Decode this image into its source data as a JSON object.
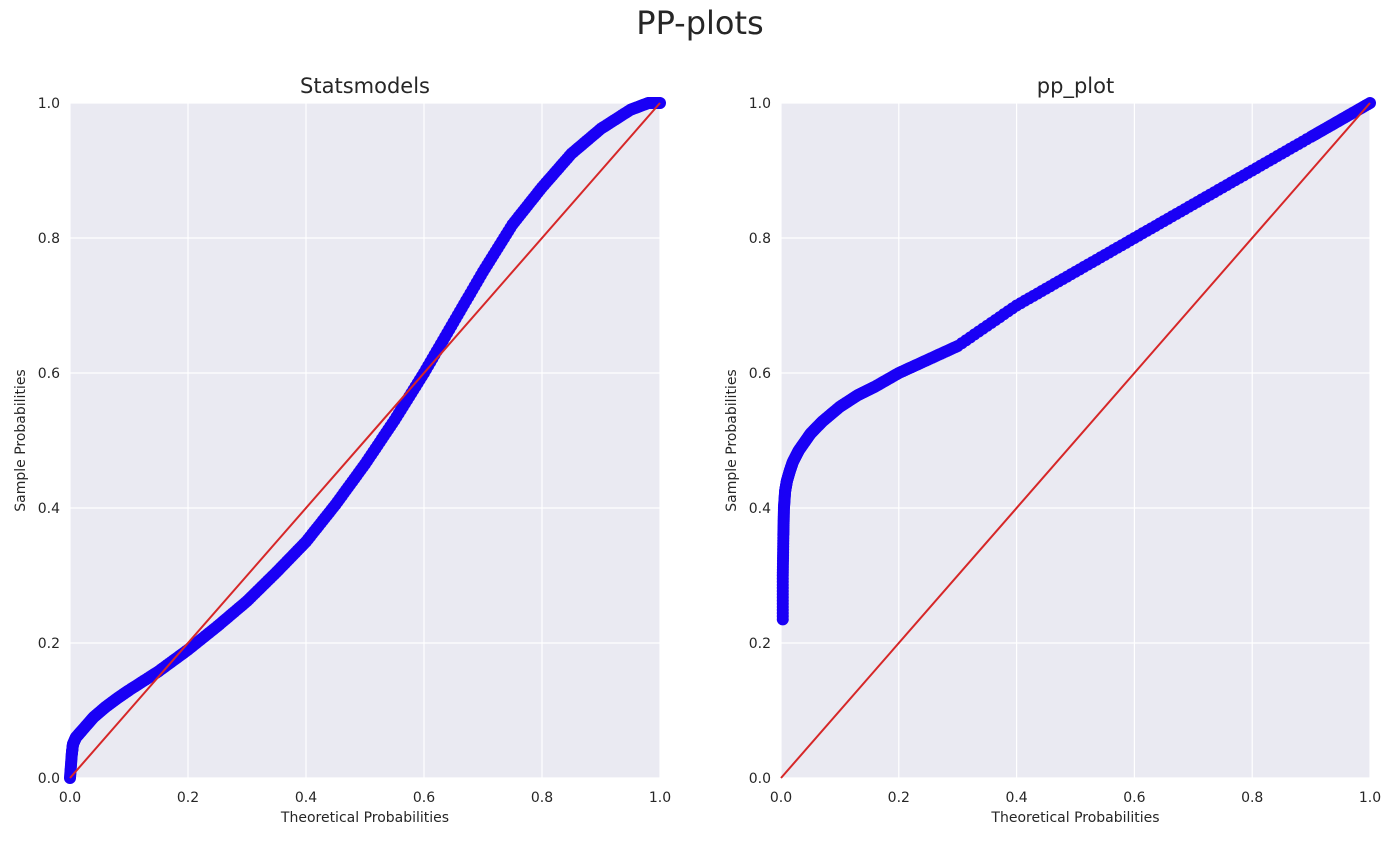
{
  "figure": {
    "suptitle": "PP-plots"
  },
  "chart_data": [
    {
      "type": "scatter",
      "title": "Statsmodels",
      "xlabel": "Theoretical Probabilities",
      "ylabel": "Sample Probabilities",
      "xlim": [
        0,
        1
      ],
      "ylim": [
        0,
        1
      ],
      "xticks": [
        "0.0",
        "0.2",
        "0.4",
        "0.6",
        "0.8",
        "1.0"
      ],
      "yticks": [
        "0.0",
        "0.2",
        "0.4",
        "0.6",
        "0.8",
        "1.0"
      ],
      "grid": true,
      "background": "#eaeaf2",
      "series": [
        {
          "marker_color": "#1a00f5",
          "x": [
            0.0,
            0.003,
            0.005,
            0.01,
            0.02,
            0.04,
            0.06,
            0.08,
            0.1,
            0.15,
            0.2,
            0.25,
            0.3,
            0.35,
            0.4,
            0.45,
            0.5,
            0.55,
            0.6,
            0.65,
            0.7,
            0.75,
            0.8,
            0.85,
            0.9,
            0.95,
            0.98,
            1.0
          ],
          "y": [
            0.0,
            0.035,
            0.05,
            0.06,
            0.07,
            0.09,
            0.105,
            0.118,
            0.13,
            0.158,
            0.19,
            0.225,
            0.262,
            0.305,
            0.35,
            0.405,
            0.465,
            0.53,
            0.6,
            0.675,
            0.75,
            0.82,
            0.875,
            0.925,
            0.962,
            0.99,
            1.0,
            1.0
          ]
        }
      ],
      "reference_line": {
        "x": [
          0,
          1
        ],
        "y": [
          0,
          1
        ],
        "color": "#d62728"
      }
    },
    {
      "type": "scatter",
      "title": "pp_plot",
      "xlabel": "Theoretical Probabilities",
      "ylabel": "Sample Probabilities",
      "xlim": [
        0,
        1
      ],
      "ylim": [
        0,
        1
      ],
      "xticks": [
        "0.0",
        "0.2",
        "0.4",
        "0.6",
        "0.8",
        "1.0"
      ],
      "yticks": [
        "0.0",
        "0.2",
        "0.4",
        "0.6",
        "0.8",
        "1.0"
      ],
      "grid": true,
      "background": "#eaeaf2",
      "series": [
        {
          "marker_color": "#1a00f5",
          "x": [
            0.003,
            0.003,
            0.004,
            0.005,
            0.007,
            0.01,
            0.015,
            0.02,
            0.03,
            0.05,
            0.07,
            0.1,
            0.13,
            0.16,
            0.2,
            0.25,
            0.3,
            0.4,
            0.5,
            0.6,
            0.7,
            0.8,
            0.9,
            0.95,
            1.0
          ],
          "y": [
            0.235,
            0.3,
            0.36,
            0.4,
            0.425,
            0.44,
            0.455,
            0.468,
            0.485,
            0.51,
            0.528,
            0.55,
            0.567,
            0.58,
            0.6,
            0.62,
            0.64,
            0.7,
            0.75,
            0.8,
            0.85,
            0.9,
            0.95,
            0.975,
            1.0
          ]
        }
      ],
      "reference_line": {
        "x": [
          0,
          1
        ],
        "y": [
          0,
          1
        ],
        "color": "#d62728"
      }
    }
  ]
}
